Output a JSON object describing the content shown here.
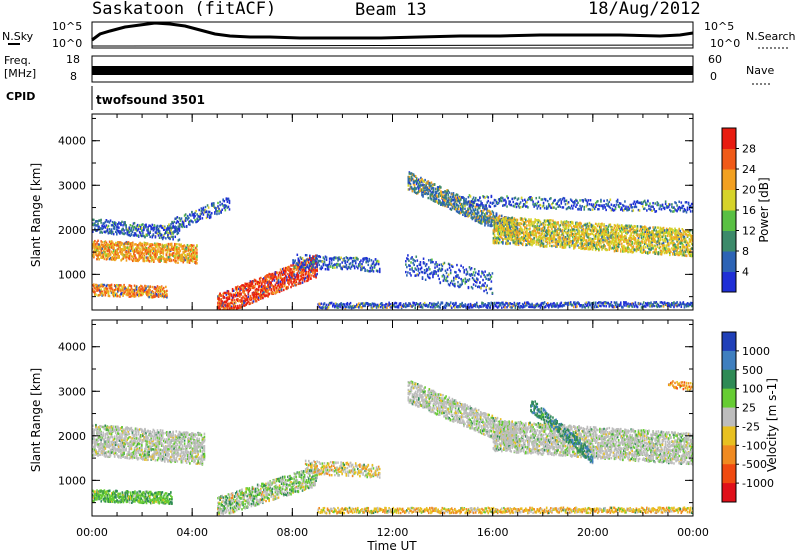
{
  "header": {
    "station": "Saskatoon (fitACF)",
    "beam": "Beam 13",
    "date": "18/Aug/2012"
  },
  "panels": {
    "nsky": {
      "label": "N.Sky",
      "top_tick": "10^5",
      "bottom_tick": "10^0"
    },
    "nsearch": {
      "label": "N.Search",
      "top_tick": "10^5",
      "bottom_tick": "10^0"
    },
    "freq": {
      "label_top": "Freq.",
      "label_unit": "[MHz]",
      "top_tick": "18",
      "bottom_tick": "8"
    },
    "nave": {
      "label": "Nave",
      "top_tick": "60",
      "bottom_tick": "0"
    },
    "cpid": {
      "label": "CPID",
      "value": "twofsound 3501"
    }
  },
  "chart_data": [
    {
      "type": "heatmap",
      "name": "power",
      "ylabel": "Slant Range [km]",
      "xlabel": "",
      "x_ticks": [
        "00:00",
        "04:00",
        "08:00",
        "12:00",
        "16:00",
        "20:00",
        "00:00"
      ],
      "y_ticks": [
        1000,
        2000,
        3000,
        4000
      ],
      "ylim": [
        200,
        4600
      ],
      "colorbar": {
        "label": "Power [dB]",
        "ticks": [
          4,
          8,
          12,
          16,
          20,
          24,
          28
        ],
        "colors": [
          "#1f2fd6",
          "#2c63b5",
          "#3c8a6a",
          "#59c043",
          "#d6d32a",
          "#f2a020",
          "#f05a18",
          "#e81c10"
        ]
      }
    },
    {
      "type": "heatmap",
      "name": "velocity",
      "ylabel": "Slant Range [km]",
      "xlabel": "Time UT",
      "x_ticks": [
        "00:00",
        "04:00",
        "08:00",
        "12:00",
        "16:00",
        "20:00",
        "00:00"
      ],
      "y_ticks": [
        1000,
        2000,
        3000,
        4000
      ],
      "ylim": [
        200,
        4600
      ],
      "colorbar": {
        "label": "Velocity [m s-1]",
        "ticks": [
          1000,
          500,
          100,
          25,
          -25,
          -100,
          -500,
          -1000
        ],
        "colors": [
          "#2040b8",
          "#3f7fbf",
          "#2e8a55",
          "#66cc33",
          "#bdbdbd",
          "#e8c020",
          "#f08a20",
          "#f04a10",
          "#e0101a"
        ]
      }
    }
  ]
}
